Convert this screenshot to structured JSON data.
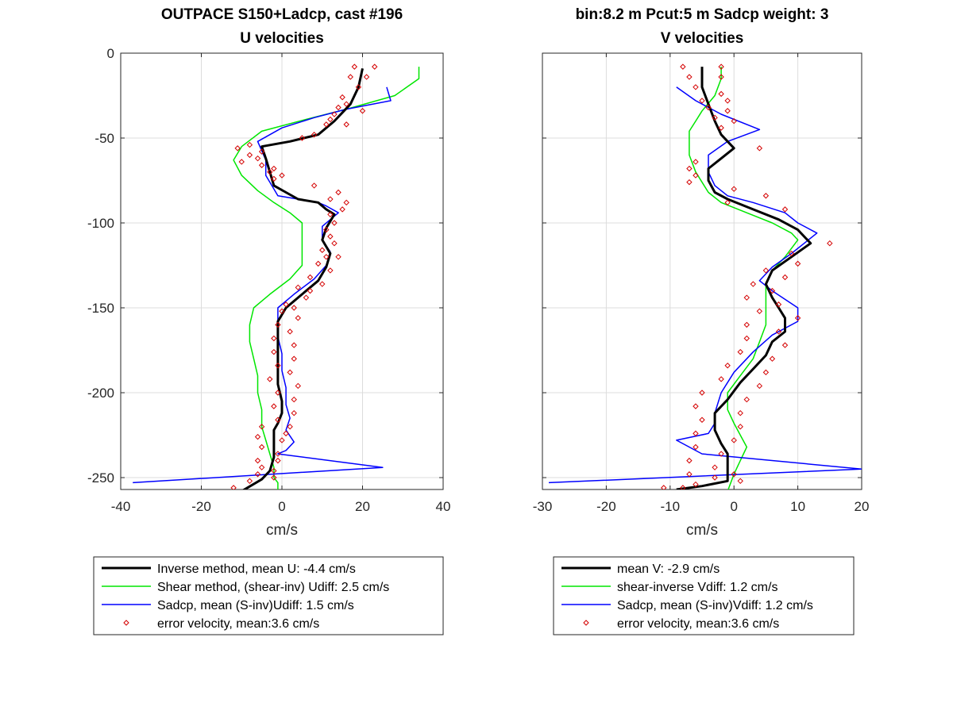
{
  "chart_data": [
    {
      "type": "line",
      "title": "OUTPACE S150+Ladcp, cast #196",
      "subtitle": "U velocities",
      "xlabel": "cm/s",
      "ylabel": "",
      "xlim": [
        -40,
        40
      ],
      "ylim": [
        -257,
        0
      ],
      "xticks": [
        "-40",
        "-20",
        "0",
        "20",
        "40"
      ],
      "yticks": [
        "0",
        "-50",
        "-100",
        "-150",
        "-200",
        "-250"
      ],
      "grid": true,
      "legend_position": "below",
      "series": [
        {
          "name": "Inverse method, mean U:  -4.4 cm/s",
          "color": "#000000",
          "width": 3,
          "style": "line",
          "x": [
            20,
            19,
            17,
            13,
            9,
            2,
            -5,
            -4,
            -3,
            -2,
            1,
            4,
            9,
            11,
            13,
            11,
            10,
            12,
            11,
            9,
            5,
            1,
            -1,
            -1,
            -1,
            -1,
            -1,
            0,
            0,
            -1,
            -2,
            -2,
            -2,
            -3,
            -5,
            -10
          ],
          "y": [
            -9,
            -20,
            -30,
            -40,
            -48,
            -52,
            -55,
            -62,
            -70,
            -78,
            -82,
            -86,
            -88,
            -92,
            -95,
            -103,
            -110,
            -118,
            -126,
            -134,
            -142,
            -150,
            -158,
            -166,
            -175,
            -185,
            -195,
            -205,
            -212,
            -218,
            -222,
            -230,
            -238,
            -246,
            -251,
            -258
          ]
        },
        {
          "name": "Shear method, (shear-inv)  Udiff:  2.5 cm/s",
          "color": "#00e600",
          "width": 1.5,
          "style": "line",
          "x": [
            34,
            34,
            28,
            16,
            6,
            -5,
            -10,
            -12,
            -10,
            -6,
            -2,
            2,
            5,
            5,
            5,
            5,
            2,
            -3,
            -7,
            -8,
            -8,
            -7,
            -6,
            -6,
            -5,
            -5,
            -4,
            -3,
            -2,
            -2,
            -1,
            -1,
            -1
          ],
          "y": [
            -8,
            -15,
            -25,
            -33,
            -39,
            -46,
            -55,
            -63,
            -72,
            -81,
            -88,
            -94,
            -100,
            -110,
            -118,
            -125,
            -133,
            -142,
            -150,
            -160,
            -170,
            -180,
            -190,
            -200,
            -210,
            -220,
            -228,
            -236,
            -244,
            -250,
            -253,
            -256,
            -258
          ]
        },
        {
          "name": "Sadcp, mean (S-inv)Udiff: 1.5 cm/s",
          "color": "#0000ff",
          "width": 1.5,
          "style": "line",
          "x": [
            26,
            27,
            16,
            8,
            0,
            -6,
            -4,
            -4,
            -2,
            -1,
            4,
            9,
            11,
            14,
            10,
            10,
            12,
            11,
            8,
            3,
            -1,
            -1,
            -1,
            0,
            0,
            1,
            1,
            2,
            1,
            3,
            1,
            -1,
            25,
            -37
          ],
          "y": [
            -20,
            -28,
            -33,
            -38,
            -44,
            -52,
            -63,
            -72,
            -80,
            -84,
            -86,
            -88,
            -90,
            -94,
            -102,
            -110,
            -117,
            -125,
            -133,
            -142,
            -150,
            -158,
            -167,
            -177,
            -187,
            -197,
            -207,
            -215,
            -222,
            -229,
            -234,
            -236,
            -244,
            -253
          ]
        },
        {
          "name": "error velocity, mean:3.6 cm/s",
          "color": "#d40000",
          "width": 1,
          "style": "marker",
          "x": [
            23,
            18,
            21,
            17,
            19,
            15,
            16,
            14,
            20,
            13,
            12,
            11,
            16,
            8,
            5,
            -8,
            -11,
            -5,
            -8,
            -6,
            -10,
            -5,
            -2,
            -3,
            0,
            -2,
            8,
            14,
            12,
            16,
            15,
            12,
            13,
            11,
            12,
            13,
            10,
            11,
            14,
            9,
            12,
            7,
            10,
            4,
            7,
            6,
            1,
            3,
            0,
            4,
            -1,
            2,
            -2,
            3,
            -2,
            3,
            -1,
            2,
            -3,
            4,
            -1,
            3,
            -2,
            3,
            -1,
            2,
            -5,
            1,
            -6,
            0,
            -5,
            -1,
            -6,
            -1,
            -5,
            -2,
            -6,
            -2,
            -8,
            -12
          ],
          "y": [
            -8,
            -8,
            -14,
            -14,
            -20,
            -26,
            -30,
            -32,
            -34,
            -36,
            -39,
            -42,
            -42,
            -48,
            -50,
            -54,
            -56,
            -58,
            -60,
            -62,
            -64,
            -66,
            -68,
            -70,
            -72,
            -74,
            -78,
            -82,
            -86,
            -88,
            -92,
            -95,
            -100,
            -104,
            -108,
            -112,
            -116,
            -120,
            -120,
            -124,
            -128,
            -132,
            -136,
            -138,
            -140,
            -144,
            -148,
            -150,
            -152,
            -156,
            -160,
            -164,
            -168,
            -172,
            -176,
            -180,
            -184,
            -188,
            -192,
            -196,
            -200,
            -204,
            -208,
            -212,
            -216,
            -220,
            -220,
            -224,
            -226,
            -228,
            -232,
            -236,
            -240,
            -240,
            -244,
            -246,
            -248,
            -250,
            -252,
            -256
          ]
        }
      ]
    },
    {
      "type": "line",
      "title": "bin:8.2 m  Pcut:5 m  Sadcp weight: 3",
      "subtitle": "V velocities",
      "xlabel": "cm/s",
      "ylabel": "",
      "xlim": [
        -30,
        20
      ],
      "ylim": [
        -257,
        0
      ],
      "xticks": [
        "-30",
        "-20",
        "-10",
        "0",
        "10",
        "20"
      ],
      "yticks": [],
      "grid": true,
      "legend_position": "below",
      "series": [
        {
          "name": "mean V:  -2.9 cm/s",
          "color": "#000000",
          "width": 3,
          "style": "line",
          "x": [
            -5,
            -5,
            -4,
            -3,
            -2,
            -1,
            0,
            -2,
            -4,
            -4,
            -3,
            -1,
            3,
            7,
            10,
            12,
            9,
            6,
            5,
            6,
            7,
            8,
            8,
            6,
            5,
            3,
            1,
            -1,
            -3,
            -3,
            -2,
            -1,
            -1,
            -1,
            -1,
            -5,
            -9
          ],
          "y": [
            -8,
            -20,
            -30,
            -40,
            -48,
            -52,
            -56,
            -62,
            -68,
            -75,
            -82,
            -86,
            -92,
            -98,
            -104,
            -112,
            -120,
            -128,
            -136,
            -144,
            -150,
            -156,
            -164,
            -170,
            -178,
            -186,
            -194,
            -204,
            -212,
            -222,
            -230,
            -236,
            -242,
            -248,
            -252,
            -255,
            -257
          ]
        },
        {
          "name": "shear-inverse Vdiff:  1.2 cm/s",
          "color": "#00e600",
          "width": 1.5,
          "style": "line",
          "x": [
            -2,
            -2,
            -3,
            -5,
            -6,
            -7,
            -7,
            -7,
            -6,
            -4,
            -2,
            2,
            6,
            9,
            10,
            8,
            6,
            5,
            5,
            5,
            5,
            4,
            3,
            1,
            -1,
            -1,
            0,
            1,
            2,
            1,
            0,
            -1
          ],
          "y": [
            -8,
            -15,
            -25,
            -34,
            -40,
            -46,
            -52,
            -60,
            -70,
            -82,
            -88,
            -94,
            -100,
            -106,
            -110,
            -120,
            -128,
            -136,
            -142,
            -150,
            -160,
            -170,
            -180,
            -190,
            -200,
            -210,
            -218,
            -225,
            -232,
            -240,
            -248,
            -258
          ]
        },
        {
          "name": "Sadcp, mean (S-inv)Vdiff: 1.2 cm/s",
          "color": "#0000ff",
          "width": 1.5,
          "style": "line",
          "x": [
            -9,
            -6,
            -2,
            4,
            -1,
            -4,
            -4,
            -3,
            -1,
            3,
            8,
            10,
            13,
            9,
            6,
            4,
            6,
            10,
            10,
            6,
            3,
            0,
            -2,
            -3,
            -3,
            -4,
            -9,
            -5,
            20,
            -29
          ],
          "y": [
            -20,
            -28,
            -36,
            -45,
            -52,
            -60,
            -70,
            -78,
            -84,
            -88,
            -94,
            -100,
            -106,
            -118,
            -126,
            -134,
            -140,
            -150,
            -158,
            -166,
            -176,
            -188,
            -200,
            -212,
            -218,
            -224,
            -228,
            -236,
            -245,
            -253
          ]
        },
        {
          "name": "error velocity, mean:3.6 cm/s",
          "color": "#d40000",
          "width": 1,
          "style": "marker",
          "x": [
            -8,
            -2,
            -7,
            -2,
            -6,
            -2,
            -5,
            -1,
            -4,
            -1,
            -3,
            0,
            -2,
            4,
            -6,
            -7,
            -6,
            -7,
            0,
            5,
            -1,
            8,
            15,
            9,
            10,
            5,
            8,
            3,
            6,
            2,
            7,
            4,
            10,
            2,
            7,
            2,
            8,
            1,
            6,
            -1,
            5,
            -2,
            4,
            -5,
            2,
            -6,
            1,
            -5,
            1,
            -6,
            0,
            -6,
            -2,
            -7,
            -3,
            -7,
            0,
            -3,
            1,
            -6,
            -8,
            -11
          ],
          "y": [
            -8,
            -8,
            -14,
            -14,
            -20,
            -24,
            -28,
            -28,
            -32,
            -34,
            -38,
            -40,
            -44,
            -56,
            -64,
            -68,
            -72,
            -76,
            -80,
            -84,
            -88,
            -92,
            -112,
            -118,
            -124,
            -128,
            -132,
            -136,
            -140,
            -144,
            -148,
            -152,
            -156,
            -160,
            -164,
            -168,
            -172,
            -176,
            -180,
            -184,
            -188,
            -192,
            -196,
            -200,
            -204,
            -208,
            -212,
            -216,
            -220,
            -224,
            -228,
            -232,
            -236,
            -240,
            -244,
            -248,
            -248,
            -250,
            -252,
            -254,
            -256,
            -256
          ]
        }
      ]
    }
  ]
}
